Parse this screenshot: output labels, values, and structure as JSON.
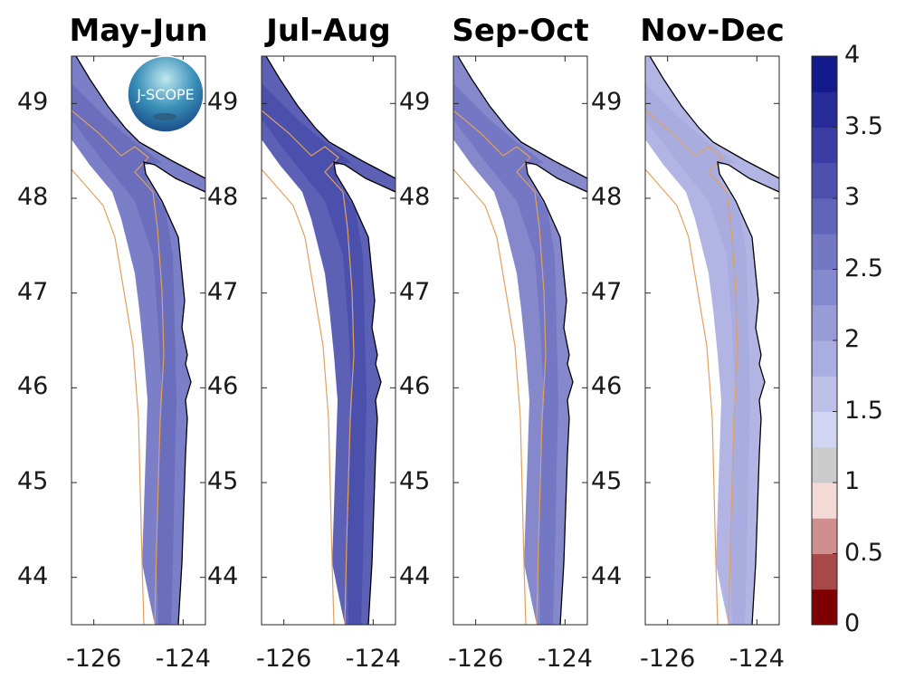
{
  "panels": [
    {
      "title": "May-Jun",
      "fill": "#7b7fc7",
      "inner": "#6a6ebd"
    },
    {
      "title": "Jul-Aug",
      "fill": "#5d61b6",
      "inner": "#4c50ad"
    },
    {
      "title": "Sep-Oct",
      "fill": "#8589cc",
      "inner": "#7478c4"
    },
    {
      "title": "Nov-Dec",
      "fill": "#b2b5e3",
      "inner": "#a9acdf"
    }
  ],
  "axes": {
    "lat_ticks": [
      "44",
      "45",
      "46",
      "47",
      "48",
      "49"
    ],
    "lon_ticks": [
      "-126",
      "-124"
    ],
    "lat_range": [
      43.5,
      49.5
    ],
    "lon_range": [
      -126.5,
      -123.5
    ]
  },
  "logo": {
    "text": "J-SCOPE"
  },
  "colors": {
    "coast": "#000000",
    "isobath": "#e0a060"
  },
  "chart_data": {
    "type": "heatmap",
    "colorbar": {
      "range": [
        0,
        4
      ],
      "ticks": [
        "0",
        "0.5",
        "1",
        "1.5",
        "2",
        "2.5",
        "3",
        "3.5",
        "4"
      ],
      "levels": [
        {
          "from": 0,
          "to": 0.25,
          "color": "#7f0000"
        },
        {
          "from": 0.25,
          "to": 0.5,
          "color": "#a84848"
        },
        {
          "from": 0.5,
          "to": 0.75,
          "color": "#cf8f8f"
        },
        {
          "from": 0.75,
          "to": 1,
          "color": "#f4d9d6"
        },
        {
          "from": 1,
          "to": 1.25,
          "color": "#cccccc"
        },
        {
          "from": 1.25,
          "to": 1.5,
          "color": "#d1d5f3"
        },
        {
          "from": 1.5,
          "to": 1.75,
          "color": "#bdc0e8"
        },
        {
          "from": 1.75,
          "to": 2,
          "color": "#aaade0"
        },
        {
          "from": 2,
          "to": 2.25,
          "color": "#989cd6"
        },
        {
          "from": 2.25,
          "to": 2.5,
          "color": "#8589cd"
        },
        {
          "from": 2.5,
          "to": 2.75,
          "color": "#7478c4"
        },
        {
          "from": 2.75,
          "to": 3,
          "color": "#6165b9"
        },
        {
          "from": 3,
          "to": 3.25,
          "color": "#4d51ae"
        },
        {
          "from": 3.25,
          "to": 3.5,
          "color": "#3a3ea3"
        },
        {
          "from": 3.5,
          "to": 3.75,
          "color": "#262b98"
        },
        {
          "from": 3.75,
          "to": 4,
          "color": "#131a8c"
        }
      ]
    }
  }
}
